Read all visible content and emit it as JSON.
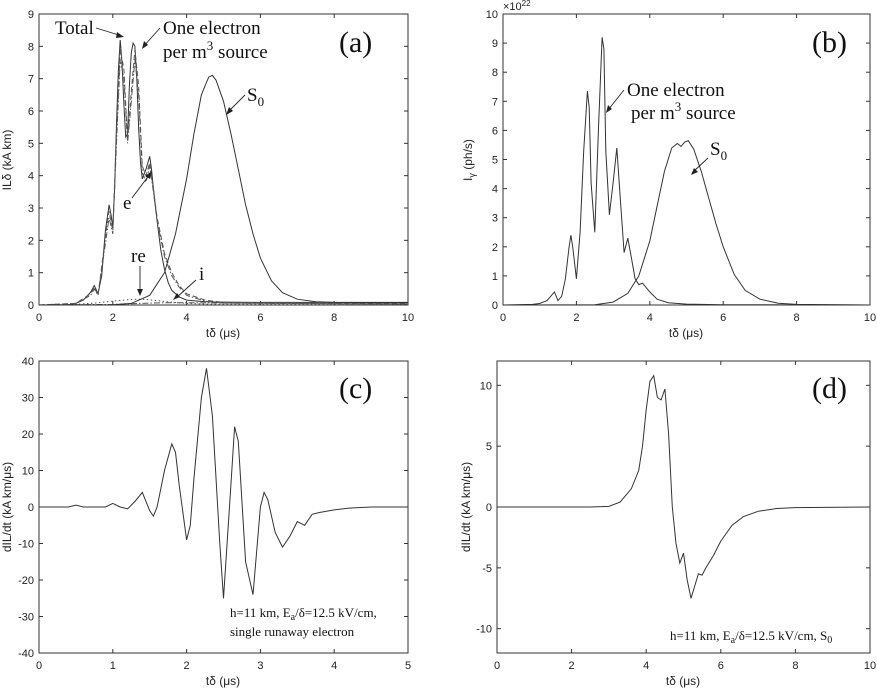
{
  "chart_data": [
    {
      "id": "a",
      "type": "line",
      "panel_label": "(a)",
      "xlabel": "tδ (μs)",
      "ylabel": "ILδ (kA km)",
      "xlim": [
        0,
        10
      ],
      "ylim": [
        0,
        9
      ],
      "xticks": [
        0,
        2,
        4,
        6,
        8,
        10
      ],
      "yticks": [
        0,
        1,
        2,
        3,
        4,
        5,
        6,
        7,
        8,
        9
      ],
      "series": [
        {
          "name": "Total",
          "style": "solid",
          "x": [
            0,
            0.8,
            1.0,
            1.2,
            1.4,
            1.5,
            1.6,
            1.7,
            1.8,
            1.9,
            1.95,
            2.0,
            2.05,
            2.1,
            2.15,
            2.2,
            2.25,
            2.3,
            2.35,
            2.4,
            2.45,
            2.5,
            2.55,
            2.6,
            2.65,
            2.7,
            2.75,
            2.8,
            2.9,
            3.0,
            3.05,
            3.1,
            3.2,
            3.3,
            3.4,
            3.5,
            3.6,
            3.8,
            4.0,
            4.5,
            5,
            6,
            7,
            8,
            10
          ],
          "y": [
            0,
            0.01,
            0.05,
            0.15,
            0.4,
            0.6,
            0.35,
            0.9,
            2.3,
            3.1,
            2.8,
            2.4,
            3.6,
            5.6,
            7.2,
            8.2,
            7.5,
            6.2,
            5.2,
            5.3,
            6.8,
            7.8,
            8.1,
            8.0,
            7.0,
            5.5,
            4.4,
            3.9,
            4.2,
            4.6,
            4.2,
            3.6,
            2.6,
            1.7,
            1.1,
            0.7,
            0.45,
            0.25,
            0.15,
            0.1,
            0.09,
            0.08,
            0.08,
            0.08,
            0.08
          ]
        },
        {
          "name": "One electron per m3 source",
          "style": "dashed",
          "x": [
            0,
            1.0,
            1.4,
            1.5,
            1.6,
            1.8,
            1.9,
            2.0,
            2.1,
            2.2,
            2.3,
            2.4,
            2.5,
            2.6,
            2.7,
            2.8,
            2.9,
            3.0,
            3.1,
            3.2,
            3.4,
            3.6,
            3.8,
            4.0,
            4.5,
            5,
            10
          ],
          "y": [
            0,
            0.05,
            0.35,
            0.55,
            0.3,
            2.1,
            2.9,
            2.3,
            5.3,
            7.9,
            7.3,
            5.1,
            6.6,
            7.9,
            6.8,
            4.3,
            4.0,
            4.4,
            3.6,
            2.7,
            1.6,
            1.0,
            0.6,
            0.35,
            0.15,
            0.08,
            0.05
          ]
        },
        {
          "name": "e",
          "style": "dashdot",
          "x": [
            0,
            1.0,
            1.4,
            1.5,
            1.6,
            1.8,
            1.9,
            2.0,
            2.1,
            2.2,
            2.3,
            2.4,
            2.5,
            2.6,
            2.7,
            2.8,
            2.9,
            3.0,
            3.1,
            3.2,
            3.4,
            3.6,
            3.8,
            4.0,
            4.5,
            5,
            10
          ],
          "y": [
            0,
            0.05,
            0.3,
            0.5,
            0.3,
            1.9,
            2.7,
            2.2,
            5.0,
            7.6,
            7.0,
            5.0,
            6.3,
            7.6,
            6.5,
            4.1,
            3.8,
            4.3,
            3.5,
            2.6,
            1.5,
            0.9,
            0.55,
            0.3,
            0.12,
            0.06,
            0.03
          ]
        },
        {
          "name": "re",
          "style": "dotted",
          "x": [
            0,
            1,
            1.5,
            2,
            2.5,
            2.8,
            3,
            3.5,
            4,
            4.5,
            5,
            10
          ],
          "y": [
            0,
            0.02,
            0.06,
            0.12,
            0.17,
            0.18,
            0.16,
            0.1,
            0.05,
            0.03,
            0.02,
            0.01
          ]
        },
        {
          "name": "i",
          "style": "dashdot",
          "x": [
            0,
            2,
            2.5,
            3,
            3.5,
            4,
            5,
            6,
            10
          ],
          "y": [
            0,
            0.02,
            0.04,
            0.06,
            0.07,
            0.07,
            0.06,
            0.05,
            0.03
          ]
        },
        {
          "name": "S0",
          "style": "solid",
          "x": [
            0,
            2.0,
            2.5,
            3.0,
            3.4,
            3.7,
            4.0,
            4.2,
            4.4,
            4.6,
            4.7,
            4.8,
            5.0,
            5.2,
            5.4,
            5.6,
            5.8,
            6.0,
            6.3,
            6.6,
            7.0,
            7.5,
            8,
            9,
            10
          ],
          "y": [
            0,
            0.01,
            0.05,
            0.3,
            1.0,
            2.2,
            3.9,
            5.3,
            6.5,
            7.05,
            7.1,
            6.95,
            6.3,
            5.3,
            4.2,
            3.1,
            2.2,
            1.45,
            0.75,
            0.38,
            0.18,
            0.1,
            0.08,
            0.07,
            0.07
          ]
        }
      ],
      "annotations": [
        {
          "text": "Total"
        },
        {
          "text": "One electron"
        },
        {
          "text": "per m",
          "sup": "3",
          "tail": " source"
        },
        {
          "text": "S",
          "sub": "0"
        },
        {
          "text": "e"
        },
        {
          "text": "re"
        },
        {
          "text": "i"
        }
      ]
    },
    {
      "id": "b",
      "type": "line",
      "panel_label": "(b)",
      "xlabel": "tδ (μs)",
      "ylabel": "Iγ (ph/s)",
      "ylabel_main": "I",
      "ylabel_sub": "γ",
      "ylabel_tail": " (ph/s)",
      "exponent_base": "×10",
      "exponent_power": "22",
      "xlim": [
        0,
        10
      ],
      "ylim": [
        0,
        10
      ],
      "xticks": [
        0,
        2,
        4,
        6,
        8,
        10
      ],
      "yticks": [
        0,
        1,
        2,
        3,
        4,
        5,
        6,
        7,
        8,
        9,
        10
      ],
      "series": [
        {
          "name": "One electron per m3 source",
          "style": "solid",
          "x": [
            0,
            0.8,
            1.0,
            1.2,
            1.3,
            1.4,
            1.5,
            1.6,
            1.7,
            1.8,
            1.85,
            1.9,
            2.0,
            2.1,
            2.2,
            2.3,
            2.35,
            2.4,
            2.5,
            2.6,
            2.7,
            2.75,
            2.8,
            2.9,
            3.0,
            3.1,
            3.2,
            3.3,
            3.4,
            3.5,
            3.6,
            3.7,
            3.8,
            4.0,
            4.2,
            4.5,
            5,
            6,
            10
          ],
          "y": [
            0,
            0.02,
            0.05,
            0.15,
            0.3,
            0.45,
            0.15,
            0.3,
            0.9,
            2.0,
            2.4,
            2.0,
            0.9,
            2.5,
            5.3,
            7.35,
            6.8,
            4.2,
            2.5,
            6.0,
            9.2,
            8.8,
            5.3,
            3.1,
            4.2,
            5.4,
            3.6,
            1.8,
            2.3,
            1.6,
            0.9,
            0.7,
            0.75,
            0.45,
            0.2,
            0.08,
            0.03,
            0.01,
            0
          ]
        },
        {
          "name": "S0",
          "style": "solid",
          "x": [
            0,
            2.5,
            3.0,
            3.4,
            3.7,
            4.0,
            4.2,
            4.4,
            4.6,
            4.75,
            4.85,
            4.95,
            5.05,
            5.2,
            5.4,
            5.6,
            5.8,
            6.0,
            6.3,
            6.6,
            7.0,
            7.5,
            8,
            10
          ],
          "y": [
            0,
            0.01,
            0.1,
            0.4,
            1.0,
            2.2,
            3.4,
            4.6,
            5.4,
            5.55,
            5.45,
            5.6,
            5.65,
            5.35,
            4.6,
            3.7,
            2.8,
            2.0,
            1.05,
            0.5,
            0.2,
            0.06,
            0.02,
            0
          ]
        }
      ],
      "annotations": [
        {
          "text": "One electron"
        },
        {
          "text": "per m",
          "sup": "3",
          "tail": " source"
        },
        {
          "text": "S",
          "sub": "0"
        }
      ]
    },
    {
      "id": "c",
      "type": "line",
      "panel_label": "(c)",
      "xlabel": "tδ (μs)",
      "ylabel": "dIL/dt (kA km/μs)",
      "xlim": [
        0,
        5
      ],
      "ylim": [
        -40,
        40
      ],
      "xticks": [
        0,
        1,
        2,
        3,
        4,
        5
      ],
      "yticks": [
        -40,
        -30,
        -20,
        -10,
        0,
        10,
        20,
        30,
        40
      ],
      "series": [
        {
          "name": "single runaway electron",
          "style": "solid",
          "x": [
            0,
            0.4,
            0.5,
            0.6,
            0.9,
            1.0,
            1.1,
            1.2,
            1.3,
            1.4,
            1.5,
            1.55,
            1.6,
            1.7,
            1.8,
            1.85,
            1.9,
            2.0,
            2.05,
            2.1,
            2.2,
            2.27,
            2.35,
            2.45,
            2.5,
            2.6,
            2.65,
            2.7,
            2.8,
            2.9,
            3.0,
            3.05,
            3.1,
            3.2,
            3.3,
            3.4,
            3.5,
            3.6,
            3.7,
            3.8,
            4.0,
            4.2,
            4.5,
            5.0
          ],
          "y": [
            0,
            0,
            0.5,
            0,
            0,
            1.0,
            0,
            -0.5,
            1.5,
            4.0,
            -1.0,
            -2.5,
            0,
            10,
            17.3,
            15,
            6,
            -9,
            -5,
            8,
            30,
            38,
            25,
            -10,
            -25,
            6,
            22,
            18,
            -15,
            -24,
            0,
            4,
            2,
            -7,
            -11,
            -8,
            -4,
            -5,
            -2,
            -1.5,
            -0.8,
            -0.3,
            0,
            0
          ]
        }
      ],
      "annotations": [
        {
          "text": "h=11 km, E",
          "sub": "a",
          "tail": "/δ=12.5 kV/cm,"
        },
        {
          "text": "single runaway electron"
        }
      ]
    },
    {
      "id": "d",
      "type": "line",
      "panel_label": "(d)",
      "xlabel": "tδ (μs)",
      "ylabel": "dIL/dt (kA km/μs)",
      "xlim": [
        0,
        10
      ],
      "ylim": [
        -12,
        12
      ],
      "xticks": [
        0,
        2,
        4,
        6,
        8,
        10
      ],
      "yticks": [
        -10,
        -5,
        0,
        5,
        10
      ],
      "series": [
        {
          "name": "S0",
          "style": "solid",
          "x": [
            0,
            2.5,
            3.0,
            3.3,
            3.6,
            3.8,
            3.9,
            4.0,
            4.1,
            4.2,
            4.3,
            4.4,
            4.5,
            4.6,
            4.7,
            4.8,
            4.9,
            5.0,
            5.1,
            5.2,
            5.3,
            5.4,
            5.5,
            5.6,
            5.8,
            6.0,
            6.3,
            6.6,
            7.0,
            7.5,
            8.0,
            10.0
          ],
          "y": [
            0,
            0,
            0.05,
            0.4,
            1.5,
            3,
            5,
            8,
            10.3,
            10.8,
            9.0,
            8.8,
            9.7,
            6.0,
            0,
            -3,
            -4.6,
            -3.8,
            -6,
            -7.5,
            -6.5,
            -5.5,
            -5.6,
            -5.0,
            -4.0,
            -2.8,
            -1.5,
            -0.8,
            -0.35,
            -0.12,
            -0.05,
            0
          ]
        }
      ],
      "annotations": [
        {
          "text": "h=11 km, E",
          "sub": "a",
          "mid": "/δ=12.5 kV/cm, S",
          "sub2": "0"
        }
      ]
    }
  ]
}
